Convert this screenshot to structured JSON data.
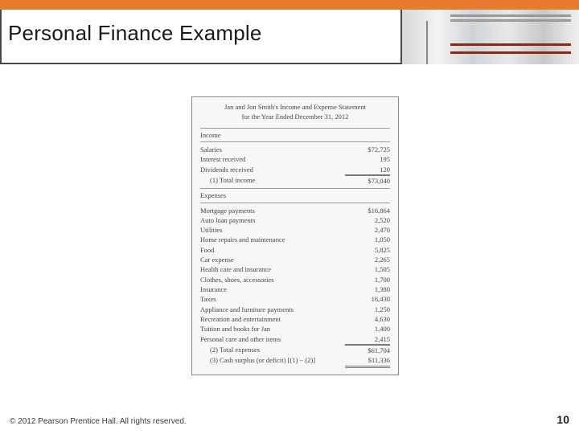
{
  "colors": {
    "accent_bar": "#e67a2e",
    "title_border": "#4a4a4a",
    "text": "#1a1a1a",
    "statement_bg": "#f7f7f5",
    "statement_border": "#888888",
    "rule": "#999999"
  },
  "slide": {
    "title": "Personal Finance Example",
    "copyright": "© 2012 Pearson Prentice Hall. All rights reserved.",
    "page_number": "10"
  },
  "statement": {
    "heading_line1": "Jan and Jon Smith's Income and Expense Statement",
    "heading_line2": "for the Year Ended December 31, 2012",
    "income": {
      "section_label": "Income",
      "rows": [
        {
          "label": "Salaries",
          "value": "$72,725"
        },
        {
          "label": "Interest received",
          "value": "195"
        },
        {
          "label": "Dividends received",
          "value": "120"
        }
      ],
      "total": {
        "label": "(1) Total income",
        "value": "$73,040"
      }
    },
    "expenses": {
      "section_label": "Expenses",
      "rows": [
        {
          "label": "Mortgage payments",
          "value": "$16,864"
        },
        {
          "label": "Auto loan payments",
          "value": "2,520"
        },
        {
          "label": "Utilities",
          "value": "2,470"
        },
        {
          "label": "Home repairs and maintenance",
          "value": "1,050"
        },
        {
          "label": "Food",
          "value": "5,825"
        },
        {
          "label": "Car expense",
          "value": "2,265"
        },
        {
          "label": "Health care and insurance",
          "value": "1,505"
        },
        {
          "label": "Clothes, shoes, accessories",
          "value": "1,700"
        },
        {
          "label": "Insurance",
          "value": "1,380"
        },
        {
          "label": "Taxes",
          "value": "16,430"
        },
        {
          "label": "Appliance and furniture payments",
          "value": "1,250"
        },
        {
          "label": "Recreation and entertainment",
          "value": "4,630"
        },
        {
          "label": "Tuition and books for Jan",
          "value": "1,400"
        },
        {
          "label": "Personal care and other items",
          "value": "2,415"
        }
      ],
      "total": {
        "label": "(2) Total expenses",
        "value": "$61,704"
      },
      "surplus": {
        "label": "(3) Cash surplus (or deficit) [(1) − (2)]",
        "value": "$11,336"
      }
    }
  }
}
